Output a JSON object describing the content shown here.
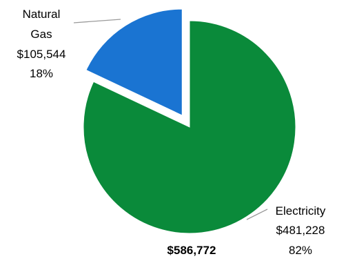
{
  "chart_data": {
    "type": "pie",
    "slices": [
      {
        "name": "Electricity",
        "value": 481228,
        "value_label": "$481,228",
        "percent_label": "82%",
        "color": "#0a8a3a"
      },
      {
        "name": "Natural Gas",
        "value": 105544,
        "value_label": "$105,544",
        "percent_label": "18%",
        "color": "#1a74d2",
        "exploded": true
      }
    ],
    "total_label": "$586,772",
    "legend": "none"
  }
}
